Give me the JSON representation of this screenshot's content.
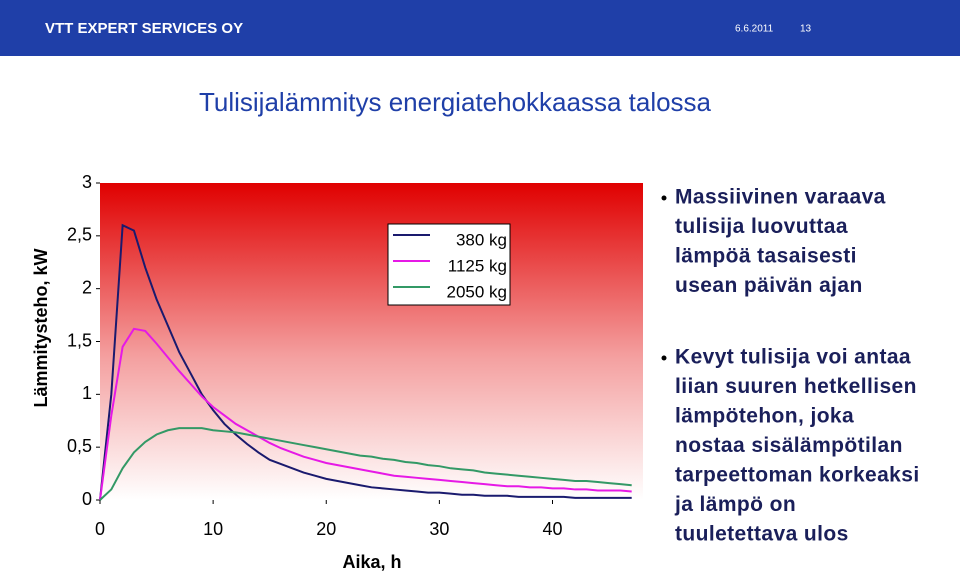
{
  "header": {
    "company": "VTT EXPERT SERVICES OY",
    "date": "6.6.2011",
    "page": "13"
  },
  "title": "Tulisijalämmitys energiatehokkaassa talossa",
  "bullets": [
    [
      "Massiivinen varaava",
      "tulisija luovuttaa",
      "lämpöä tasaisesti",
      "usean päivän ajan"
    ],
    [
      "Kevyt tulisija voi antaa",
      "liian suuren hetkellisen",
      "lämpötehon, joka",
      "nostaa sisälämpötilan",
      "tarpeettoman korkeaksi",
      "ja lämpö on",
      "tuuletettava ulos"
    ]
  ],
  "chart_data": {
    "type": "line",
    "xlabel": "Aika, h",
    "ylabel": "Lämmitysteho, kW",
    "x": [
      0,
      1,
      2,
      3,
      4,
      5,
      6,
      7,
      8,
      9,
      10,
      11,
      12,
      13,
      14,
      15,
      16,
      17,
      18,
      19,
      20,
      21,
      22,
      23,
      24,
      25,
      26,
      27,
      28,
      29,
      30,
      31,
      32,
      33,
      34,
      35,
      36,
      37,
      38,
      39,
      40,
      41,
      42,
      43,
      44,
      45,
      46,
      47
    ],
    "series": [
      {
        "name": "380 kg",
        "color": "#1a1a6e",
        "values": [
          0,
          1.0,
          2.6,
          2.55,
          2.2,
          1.9,
          1.65,
          1.4,
          1.2,
          1.0,
          0.85,
          0.72,
          0.62,
          0.53,
          0.45,
          0.38,
          0.34,
          0.3,
          0.26,
          0.23,
          0.2,
          0.18,
          0.16,
          0.14,
          0.12,
          0.11,
          0.1,
          0.09,
          0.08,
          0.07,
          0.07,
          0.06,
          0.05,
          0.05,
          0.04,
          0.04,
          0.04,
          0.03,
          0.03,
          0.03,
          0.03,
          0.03,
          0.02,
          0.02,
          0.02,
          0.02,
          0.02,
          0.02
        ]
      },
      {
        "name": "1125 kg",
        "color": "#e619e6",
        "values": [
          0,
          0.8,
          1.45,
          1.62,
          1.6,
          1.48,
          1.35,
          1.22,
          1.1,
          0.98,
          0.88,
          0.8,
          0.72,
          0.66,
          0.6,
          0.54,
          0.49,
          0.45,
          0.41,
          0.38,
          0.35,
          0.33,
          0.31,
          0.29,
          0.27,
          0.25,
          0.23,
          0.22,
          0.21,
          0.2,
          0.19,
          0.18,
          0.17,
          0.16,
          0.15,
          0.14,
          0.13,
          0.13,
          0.12,
          0.12,
          0.11,
          0.11,
          0.1,
          0.1,
          0.09,
          0.09,
          0.09,
          0.08
        ]
      },
      {
        "name": "2050 kg",
        "color": "#339966",
        "values": [
          0,
          0.1,
          0.3,
          0.45,
          0.55,
          0.62,
          0.66,
          0.68,
          0.68,
          0.68,
          0.66,
          0.65,
          0.64,
          0.62,
          0.6,
          0.58,
          0.56,
          0.54,
          0.52,
          0.5,
          0.48,
          0.46,
          0.44,
          0.42,
          0.41,
          0.39,
          0.38,
          0.36,
          0.35,
          0.33,
          0.32,
          0.3,
          0.29,
          0.28,
          0.26,
          0.25,
          0.24,
          0.23,
          0.22,
          0.21,
          0.2,
          0.19,
          0.18,
          0.18,
          0.17,
          0.16,
          0.15,
          0.14
        ]
      }
    ],
    "xlim": [
      0,
      48
    ],
    "xticks": [
      0,
      10,
      20,
      30,
      40
    ],
    "ylim": [
      0,
      3
    ],
    "yticks": [
      0,
      {
        "value": 0.5,
        "label": "0,5"
      },
      1,
      {
        "value": 1.5,
        "label": "1,5"
      },
      2,
      {
        "value": 2.5,
        "label": "2,5"
      },
      3
    ],
    "grid": false
  }
}
